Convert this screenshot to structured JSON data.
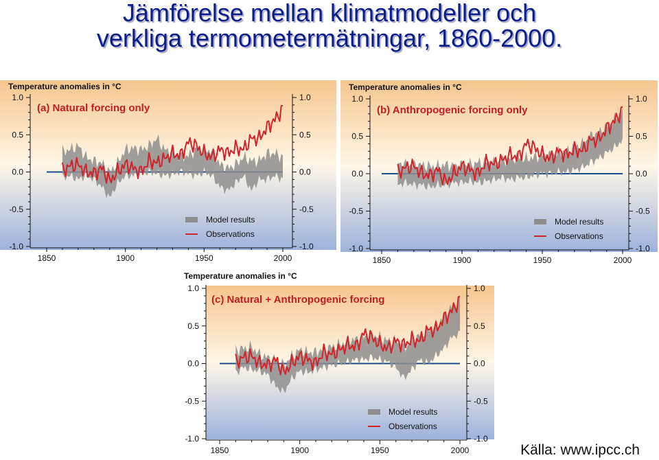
{
  "slide": {
    "title_line1": "Jämförelse mellan klimatmodeller och",
    "title_line2": "verkliga termometermätningar, 1860-2000.",
    "source": "Källa: www.ipcc.ch"
  },
  "colors": {
    "model": "#8e8e8e",
    "observations": "#d2232a",
    "zero_line": "#1c4d8a",
    "bg_top": "#f6c68f",
    "bg_mid": "#fff7e8",
    "bg_bottom": "#9db2db"
  },
  "chart_data": [
    {
      "type": "line",
      "panel": "a",
      "title": "(a) Natural forcing only",
      "ylabel": "Temperature anomalies in °C",
      "xlim": [
        1850,
        2000
      ],
      "ylim": [
        -1.0,
        1.0
      ],
      "x_ticks": [
        "1850",
        "1900",
        "1950",
        "2000"
      ],
      "y_ticks": [
        "1.0",
        "0.5",
        "0.0",
        "-0.5",
        "-1.0"
      ],
      "legend": [
        "Model results",
        "Observations"
      ],
      "legend_position": "bottom-right",
      "series": [
        {
          "name": "Model results",
          "kind": "band",
          "x": [
            1860,
            1865,
            1870,
            1875,
            1880,
            1885,
            1890,
            1895,
            1900,
            1905,
            1910,
            1915,
            1920,
            1925,
            1930,
            1935,
            1940,
            1945,
            1950,
            1955,
            1960,
            1965,
            1970,
            1975,
            1980,
            1985,
            1990,
            1995,
            2000
          ],
          "low": [
            -0.08,
            -0.05,
            -0.1,
            -0.05,
            -0.1,
            -0.2,
            -0.35,
            -0.15,
            -0.05,
            -0.05,
            -0.02,
            0.0,
            -0.02,
            -0.05,
            -0.03,
            0.0,
            -0.02,
            -0.05,
            0.0,
            -0.05,
            -0.2,
            -0.25,
            -0.15,
            -0.05,
            -0.25,
            -0.1,
            -0.1,
            -0.05,
            -0.1
          ],
          "high": [
            0.28,
            0.3,
            0.35,
            0.2,
            0.15,
            0.12,
            0.0,
            0.12,
            0.3,
            0.32,
            0.3,
            0.35,
            0.45,
            0.3,
            0.25,
            0.2,
            0.22,
            0.3,
            0.3,
            0.28,
            0.1,
            0.05,
            0.1,
            0.2,
            0.15,
            0.15,
            0.25,
            0.25,
            0.2
          ]
        },
        {
          "name": "Observations",
          "kind": "line",
          "x": [
            1860,
            1865,
            1870,
            1875,
            1880,
            1885,
            1890,
            1895,
            1900,
            1905,
            1910,
            1915,
            1920,
            1925,
            1930,
            1935,
            1940,
            1945,
            1950,
            1955,
            1960,
            1965,
            1970,
            1975,
            1980,
            1985,
            1990,
            1995,
            2000
          ],
          "y": [
            0.02,
            0.08,
            0.1,
            0.0,
            -0.02,
            0.05,
            -0.12,
            0.0,
            0.1,
            0.05,
            0.0,
            0.15,
            0.12,
            0.18,
            0.25,
            0.22,
            0.4,
            0.35,
            0.25,
            0.2,
            0.3,
            0.25,
            0.32,
            0.3,
            0.45,
            0.45,
            0.6,
            0.7,
            0.85
          ]
        }
      ]
    },
    {
      "type": "line",
      "panel": "b",
      "title": "(b) Anthropogenic forcing only",
      "ylabel": "Temperature anomalies in °C",
      "xlim": [
        1850,
        2000
      ],
      "ylim": [
        -1.0,
        1.0
      ],
      "x_ticks": [
        "1850",
        "1900",
        "1950",
        "2000"
      ],
      "y_ticks": [
        "1.0",
        "0.5",
        "0.0",
        "-0.5",
        "-1.0"
      ],
      "legend": [
        "Model results",
        "Observations"
      ],
      "legend_position": "bottom-right",
      "series": [
        {
          "name": "Model results",
          "kind": "band",
          "x": [
            1860,
            1865,
            1870,
            1875,
            1880,
            1885,
            1890,
            1895,
            1900,
            1905,
            1910,
            1915,
            1920,
            1925,
            1930,
            1935,
            1940,
            1945,
            1950,
            1955,
            1960,
            1965,
            1970,
            1975,
            1980,
            1985,
            1990,
            1995,
            2000
          ],
          "low": [
            -0.15,
            -0.12,
            -0.15,
            -0.15,
            -0.18,
            -0.15,
            -0.15,
            -0.12,
            -0.12,
            -0.1,
            -0.12,
            -0.1,
            -0.08,
            -0.05,
            -0.08,
            -0.05,
            -0.05,
            -0.02,
            0.0,
            0.0,
            0.02,
            0.02,
            0.05,
            0.08,
            0.15,
            0.2,
            0.28,
            0.35,
            0.45
          ],
          "high": [
            0.15,
            0.12,
            0.12,
            0.12,
            0.1,
            0.1,
            0.12,
            0.1,
            0.12,
            0.12,
            0.15,
            0.15,
            0.15,
            0.18,
            0.2,
            0.22,
            0.2,
            0.22,
            0.25,
            0.25,
            0.28,
            0.3,
            0.35,
            0.4,
            0.5,
            0.55,
            0.62,
            0.72,
            0.85
          ]
        },
        {
          "name": "Observations",
          "kind": "line",
          "x": [
            1860,
            1865,
            1870,
            1875,
            1880,
            1885,
            1890,
            1895,
            1900,
            1905,
            1910,
            1915,
            1920,
            1925,
            1930,
            1935,
            1940,
            1945,
            1950,
            1955,
            1960,
            1965,
            1970,
            1975,
            1980,
            1985,
            1990,
            1995,
            2000
          ],
          "y": [
            0.02,
            0.08,
            0.1,
            0.0,
            -0.02,
            0.05,
            -0.12,
            0.0,
            0.1,
            0.05,
            0.0,
            0.15,
            0.12,
            0.18,
            0.25,
            0.22,
            0.4,
            0.35,
            0.25,
            0.2,
            0.3,
            0.25,
            0.32,
            0.3,
            0.45,
            0.45,
            0.6,
            0.7,
            0.85
          ]
        }
      ]
    },
    {
      "type": "line",
      "panel": "c",
      "title": "(c) Natural + Anthropogenic forcing",
      "ylabel": "Temperature anomalies in °C",
      "xlim": [
        1850,
        2000
      ],
      "ylim": [
        -1.0,
        1.0
      ],
      "x_ticks": [
        "1850",
        "1900",
        "1950",
        "2000"
      ],
      "y_ticks": [
        "1.0",
        "0.5",
        "0.0",
        "-0.5",
        "-1.0"
      ],
      "legend": [
        "Model results",
        "Observations"
      ],
      "legend_position": "bottom-right",
      "series": [
        {
          "name": "Model results",
          "kind": "band",
          "x": [
            1860,
            1865,
            1870,
            1875,
            1880,
            1885,
            1890,
            1895,
            1900,
            1905,
            1910,
            1915,
            1920,
            1925,
            1930,
            1935,
            1940,
            1945,
            1950,
            1955,
            1960,
            1965,
            1970,
            1975,
            1980,
            1985,
            1990,
            1995,
            2000
          ],
          "low": [
            -0.12,
            -0.05,
            -0.08,
            -0.1,
            -0.15,
            -0.3,
            -0.38,
            -0.2,
            -0.1,
            -0.12,
            -0.08,
            -0.05,
            -0.02,
            0.0,
            0.02,
            0.05,
            0.05,
            0.08,
            0.05,
            0.02,
            -0.05,
            -0.2,
            -0.08,
            0.05,
            0.0,
            0.1,
            0.2,
            0.35,
            0.4
          ],
          "high": [
            0.18,
            0.2,
            0.22,
            0.12,
            0.08,
            0.05,
            -0.02,
            0.1,
            0.18,
            0.15,
            0.15,
            0.2,
            0.22,
            0.25,
            0.3,
            0.32,
            0.35,
            0.38,
            0.35,
            0.3,
            0.3,
            0.2,
            0.3,
            0.38,
            0.45,
            0.5,
            0.62,
            0.75,
            0.85
          ]
        },
        {
          "name": "Observations",
          "kind": "line",
          "x": [
            1860,
            1865,
            1870,
            1875,
            1880,
            1885,
            1890,
            1895,
            1900,
            1905,
            1910,
            1915,
            1920,
            1925,
            1930,
            1935,
            1940,
            1945,
            1950,
            1955,
            1960,
            1965,
            1970,
            1975,
            1980,
            1985,
            1990,
            1995,
            2000
          ],
          "y": [
            0.02,
            0.08,
            0.1,
            0.0,
            -0.02,
            0.05,
            -0.12,
            0.0,
            0.1,
            0.05,
            0.0,
            0.15,
            0.12,
            0.18,
            0.25,
            0.22,
            0.4,
            0.35,
            0.25,
            0.2,
            0.3,
            0.25,
            0.32,
            0.3,
            0.45,
            0.45,
            0.6,
            0.7,
            0.85
          ]
        }
      ]
    }
  ]
}
